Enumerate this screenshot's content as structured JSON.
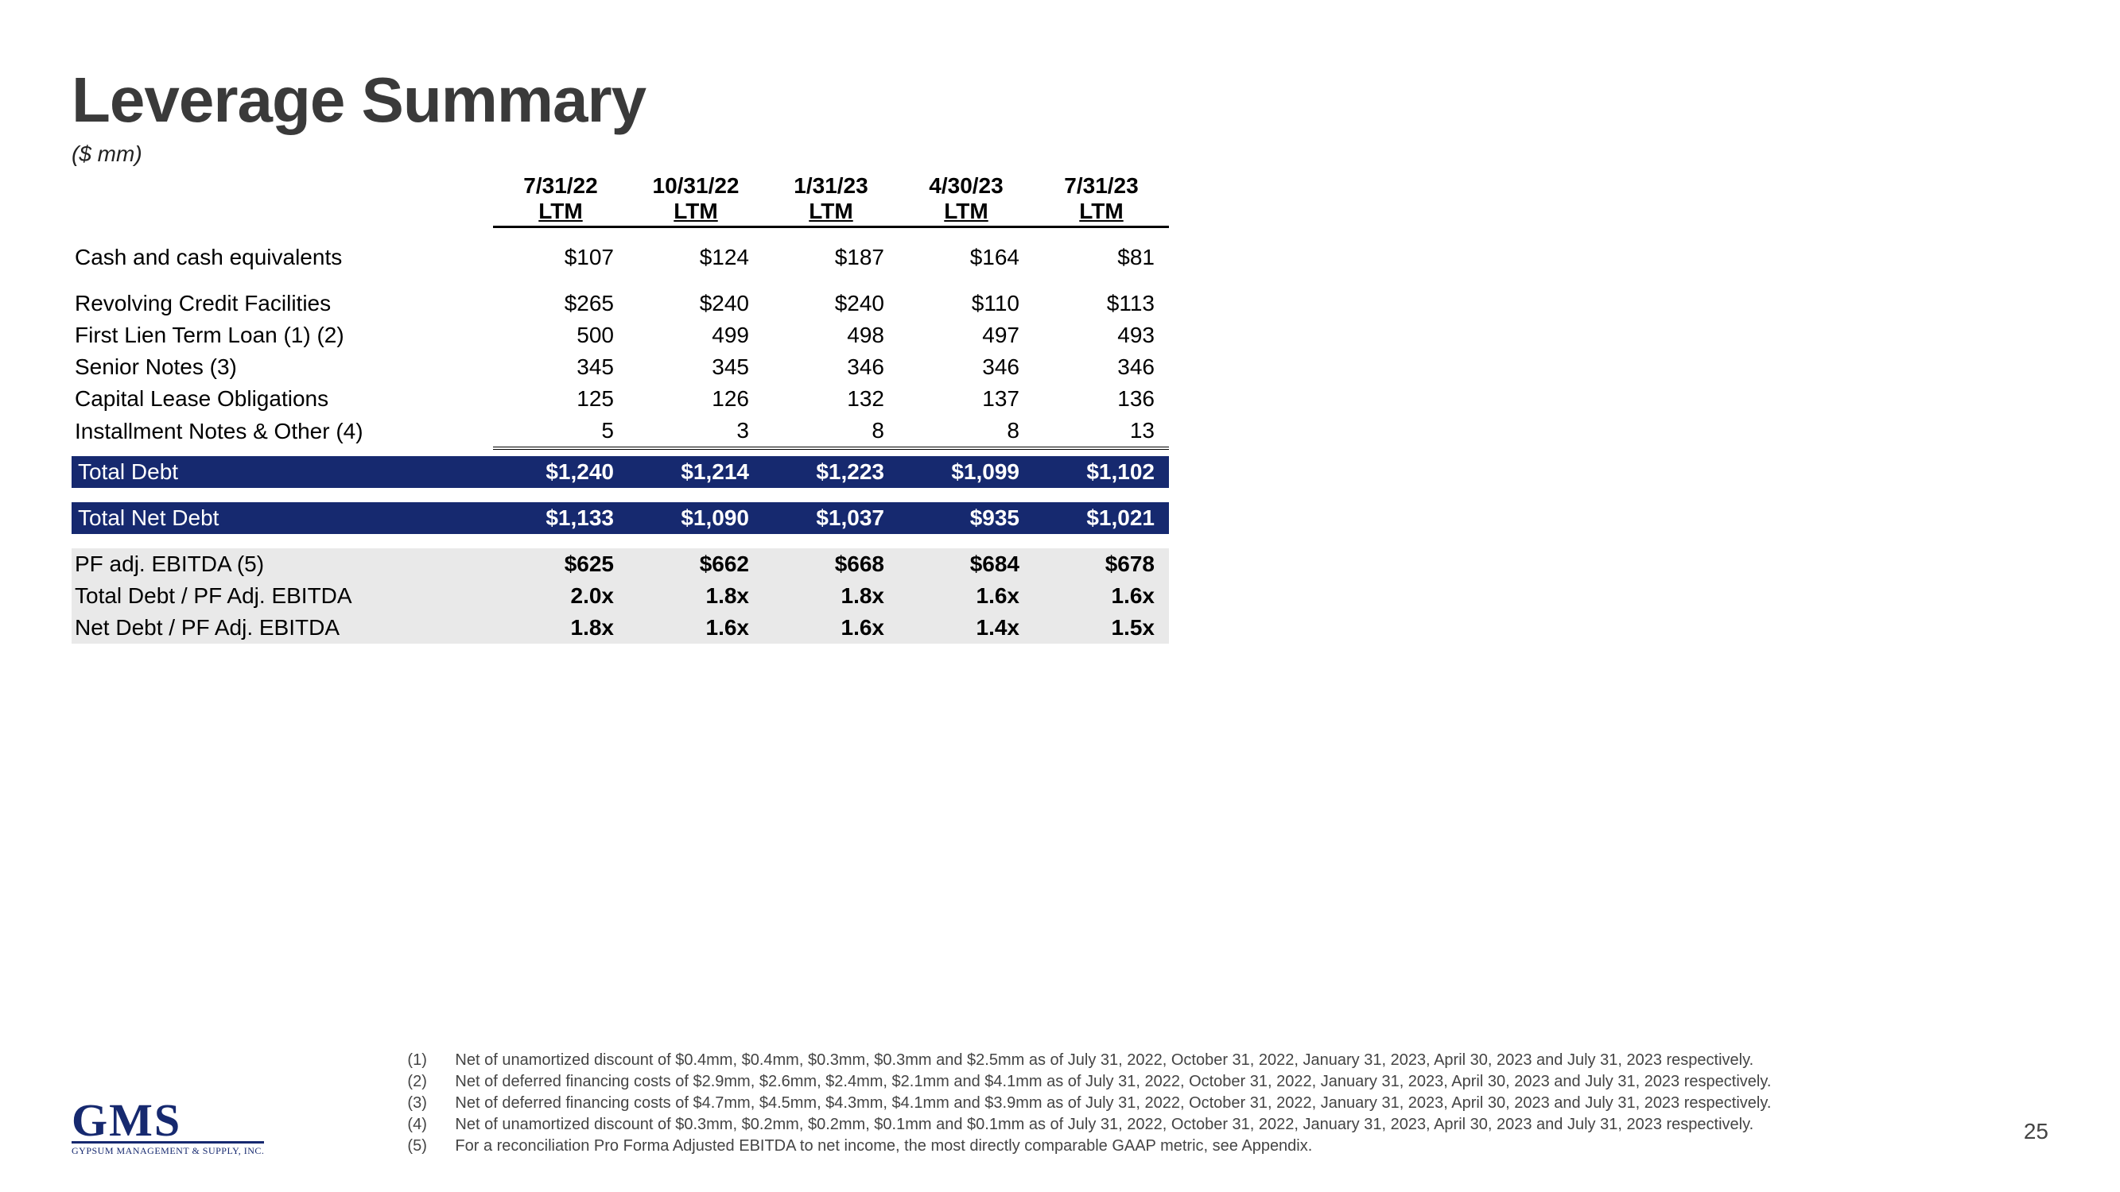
{
  "title": "Leverage Summary",
  "unit_label": "($ mm)",
  "columns": [
    {
      "date": "7/31/22",
      "sub": "LTM"
    },
    {
      "date": "10/31/22",
      "sub": "LTM"
    },
    {
      "date": "1/31/23",
      "sub": "LTM"
    },
    {
      "date": "4/30/23",
      "sub": "LTM"
    },
    {
      "date": "7/31/23",
      "sub": "LTM"
    }
  ],
  "rows": {
    "cash": {
      "label": "Cash and cash equivalents",
      "vals": [
        "$107",
        "$124",
        "$187",
        "$164",
        "$81"
      ]
    },
    "revolver": {
      "label": "Revolving Credit Facilities",
      "vals": [
        "$265",
        "$240",
        "$240",
        "$110",
        "$113"
      ]
    },
    "termloan": {
      "label": "First Lien Term Loan (1) (2)",
      "vals": [
        "500",
        "499",
        "498",
        "497",
        "493"
      ]
    },
    "seniornotes": {
      "label": "Senior Notes (3)",
      "vals": [
        "345",
        "345",
        "346",
        "346",
        "346"
      ]
    },
    "caplease": {
      "label": "Capital Lease Obligations",
      "vals": [
        "125",
        "126",
        "132",
        "137",
        "136"
      ]
    },
    "install": {
      "label": "Installment Notes & Other (4)",
      "vals": [
        "5",
        "3",
        "8",
        "8",
        "13"
      ]
    },
    "totaldebt": {
      "label": "Total Debt",
      "vals": [
        "$1,240",
        "$1,214",
        "$1,223",
        "$1,099",
        "$1,102"
      ]
    },
    "netdebt": {
      "label": "Total Net Debt",
      "vals": [
        "$1,133",
        "$1,090",
        "$1,037",
        "$935",
        "$1,021"
      ]
    },
    "ebitda": {
      "label": "PF adj. EBITDA (5)",
      "vals": [
        "$625",
        "$662",
        "$668",
        "$684",
        "$678"
      ]
    },
    "tdratio": {
      "label": "Total Debt / PF Adj. EBITDA",
      "vals": [
        "2.0x",
        "1.8x",
        "1.8x",
        "1.6x",
        "1.6x"
      ]
    },
    "ndratio": {
      "label": "Net Debt / PF Adj. EBITDA",
      "vals": [
        "1.8x",
        "1.6x",
        "1.6x",
        "1.4x",
        "1.5x"
      ]
    }
  },
  "colors": {
    "blue": "#16296f",
    "grey": "#e9e9e9",
    "text": "#000000",
    "bg": "#ffffff"
  },
  "logo": {
    "big": "GMS",
    "small": "GYPSUM MANAGEMENT & SUPPLY, INC."
  },
  "footnotes": [
    {
      "n": "(1)",
      "t": "Net of unamortized discount of $0.4mm, $0.4mm, $0.3mm, $0.3mm and $2.5mm as of July 31, 2022, October 31, 2022, January 31, 2023, April 30, 2023 and July 31, 2023 respectively."
    },
    {
      "n": "(2)",
      "t": "Net of deferred financing costs of $2.9mm, $2.6mm, $2.4mm, $2.1mm and $4.1mm as of July 31, 2022, October 31, 2022, January 31, 2023, April 30, 2023 and July 31, 2023 respectively."
    },
    {
      "n": "(3)",
      "t": "Net of deferred financing costs of $4.7mm, $4.5mm, $4.3mm, $4.1mm and $3.9mm as of July 31, 2022, October 31, 2022, January 31, 2023, April 30, 2023 and July 31, 2023 respectively."
    },
    {
      "n": "(4)",
      "t": "Net of unamortized discount of $0.3mm, $0.2mm, $0.2mm, $0.1mm and $0.1mm as of July 31, 2022, October 31, 2022, January 31, 2023, April 30, 2023 and July 31, 2023 respectively."
    },
    {
      "n": "(5)",
      "t": "For a reconciliation Pro Forma Adjusted EBITDA to net income, the most directly comparable GAAP metric, see Appendix."
    }
  ],
  "page_number": "25"
}
